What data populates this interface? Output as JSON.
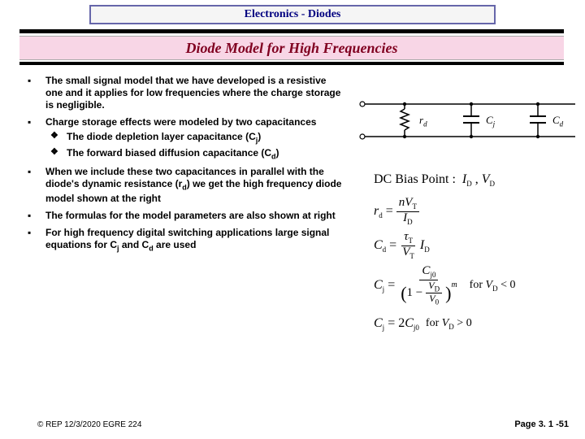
{
  "header": "Electronics - Diodes",
  "title": "Diode Model for High Frequencies",
  "bullets": [
    {
      "text": "The small signal model that we have developed is a resistive one and it applies for low frequencies where the charge storage is negligible."
    },
    {
      "text": "Charge storage effects were modeled by two capacitances",
      "sub": [
        "The diode depletion layer capacitance (C<j>)",
        "The forward biased diffusion capacitance (C<d>)"
      ]
    },
    {
      "text": "When we include these two capacitances in parallel with the diode's dynamic resistance (r<d>) we get the high frequency diode model shown at the right"
    },
    {
      "text": "The formulas for the model parameters are also shown at right"
    },
    {
      "text": "For high frequency digital switching applications large signal equations for C<j> and C<d> are used"
    }
  ],
  "circuit_labels": {
    "rd": "r",
    "rd_sub": "d",
    "cj": "C",
    "cj_sub": "j",
    "cd": "C",
    "cd_sub": "d"
  },
  "equations": {
    "dc": {
      "lhs": "DC Bias Point :",
      "rhs": "I_D , V_D"
    },
    "rd": {
      "lhs": "r_d =",
      "num": "nV_T",
      "den": "I_D"
    },
    "cd": {
      "lhs": "C_d =",
      "num": "τ_T",
      "den": "V_T",
      "tail": "I_D"
    },
    "cj_neg": {
      "lhs": "C_j =",
      "num": "C_j0",
      "den_pre": "(1 −",
      "den_num": "V_D",
      "den_den": "V_0",
      "den_post": ")",
      "exp": "m",
      "cond": "for V_D < 0"
    },
    "cj_pos": {
      "lhs": "C_j = 2C_j0",
      "cond": "for V_D > 0"
    }
  },
  "footer": {
    "left": "© REP  12/3/2020  EGRE 224",
    "right": "Page 3. 1 -51"
  },
  "colors": {
    "title_bg": "#f8d6e6",
    "title_fg": "#800020",
    "header_fg": "#000080"
  }
}
